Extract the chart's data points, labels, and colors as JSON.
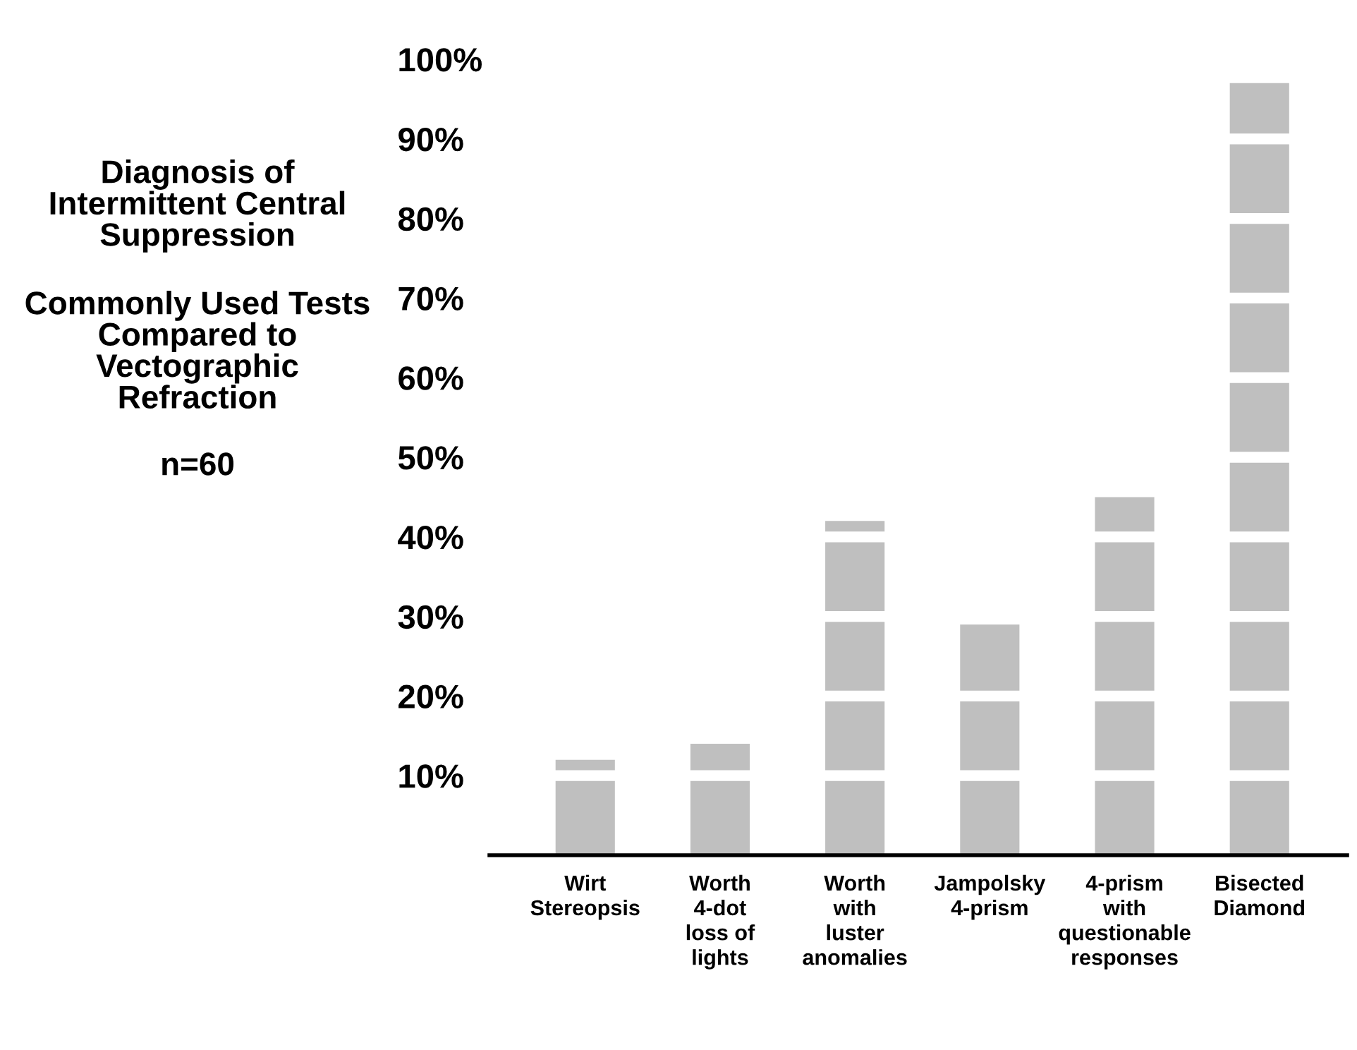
{
  "chart_data": {
    "type": "bar",
    "title": "Diagnosis of\nIntermittent Central\nSuppression",
    "subtitle": "Commonly Used Tests\nCompared to\nVectographic\nRefraction",
    "annotations": [
      "n=60"
    ],
    "categories": [
      "Wirt\nStereopsis",
      "Worth\n4-dot\nloss of\nlights",
      "Worth\nwith\nluster\nanomalies",
      "Jampolsky\n4-prism",
      "4-prism\nwith\nquestionable\nresponses",
      "Bisected\nDiamond"
    ],
    "values": [
      12,
      14,
      42,
      29,
      45,
      97
    ],
    "color": "#bfbfbf",
    "ylim": [
      0,
      100
    ],
    "yticks": [
      {
        "value": 10,
        "label": "10%"
      },
      {
        "value": 20,
        "label": "20%"
      },
      {
        "value": 30,
        "label": "30%"
      },
      {
        "value": 40,
        "label": "40%"
      },
      {
        "value": 50,
        "label": "50%"
      },
      {
        "value": 60,
        "label": "60%"
      },
      {
        "value": 70,
        "label": "70%"
      },
      {
        "value": 80,
        "label": "80%"
      },
      {
        "value": 90,
        "label": "90%"
      },
      {
        "value": 100,
        "label": "100%"
      }
    ],
    "grid": "y"
  }
}
